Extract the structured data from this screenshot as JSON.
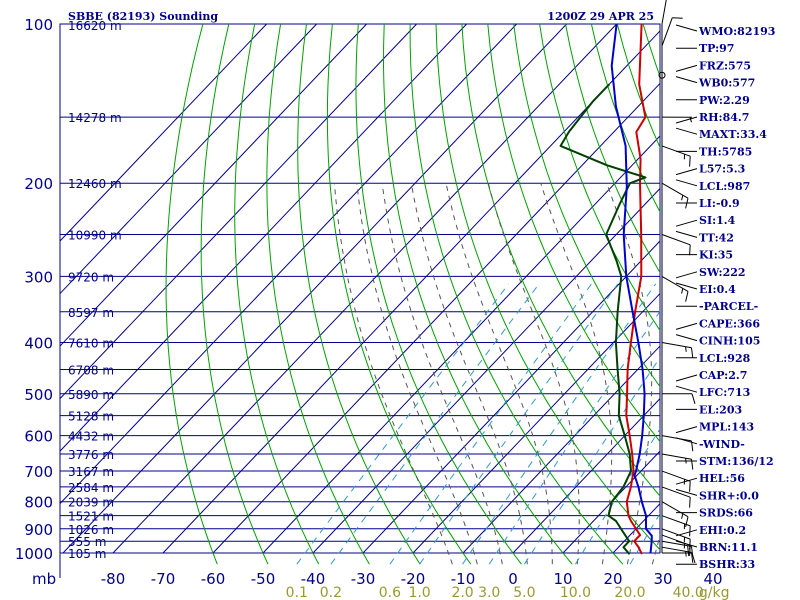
{
  "title": "SBBE (82193) Sounding",
  "timestamp": "1200Z 29 APR 25",
  "colors": {
    "frame": "#00008b",
    "isotherm": "#00008b",
    "dry_adiabat": "#00a000",
    "moist_adiabat": "#555555",
    "mixing_ratio": "#3399cc",
    "temperature": "#cc0000",
    "dewpoint": "#004000",
    "parcel": "#0000cc",
    "labels": "#00008b",
    "mixing_label": "#999933"
  },
  "chart_data": {
    "type": "line",
    "title": "SBBE (82193) Sounding",
    "xlabel": "",
    "ylabel": "mb",
    "x_ticks": [
      -80,
      -70,
      -60,
      -50,
      -40,
      -30,
      -20,
      -10,
      0,
      10,
      20,
      30,
      40
    ],
    "y_ticks": [
      100,
      200,
      300,
      400,
      500,
      600,
      700,
      800,
      900,
      1000
    ],
    "xlim": [
      -80,
      40
    ],
    "ylim": [
      1000,
      100
    ],
    "grid": true,
    "mixing_ratio_labels": [
      "0.1",
      "0.2",
      "0.6",
      "1.0",
      "2.0",
      "3.0",
      "5.0",
      "10.0",
      "20.0",
      "40.0",
      "g/kg"
    ],
    "height_labels": [
      {
        "p": 100,
        "label": "16620 m"
      },
      {
        "p": 150,
        "label": "14278 m"
      },
      {
        "p": 200,
        "label": "12460 m"
      },
      {
        "p": 250,
        "label": "10990 m"
      },
      {
        "p": 300,
        "label": "9720 m"
      },
      {
        "p": 350,
        "label": "8597 m"
      },
      {
        "p": 400,
        "label": "7610 m"
      },
      {
        "p": 450,
        "label": "6708 m"
      },
      {
        "p": 500,
        "label": "5890 m"
      },
      {
        "p": 550,
        "label": "5128 m"
      },
      {
        "p": 600,
        "label": "4432 m"
      },
      {
        "p": 650,
        "label": "3776 m"
      },
      {
        "p": 700,
        "label": "3167 m"
      },
      {
        "p": 750,
        "label": "2584 m"
      },
      {
        "p": 800,
        "label": "2039 m"
      },
      {
        "p": 850,
        "label": "1521 m"
      },
      {
        "p": 900,
        "label": "1026 m"
      },
      {
        "p": 950,
        "label": "555 m"
      },
      {
        "p": 1000,
        "label": "105 m"
      }
    ],
    "series": [
      {
        "id": "temperature",
        "points": [
          [
            1005,
            26.0
          ],
          [
            975,
            24.0
          ],
          [
            950,
            22.0
          ],
          [
            925,
            22.0
          ],
          [
            900,
            20.0
          ],
          [
            870,
            17.5
          ],
          [
            850,
            16.0
          ],
          [
            800,
            13.0
          ],
          [
            750,
            11.0
          ],
          [
            700,
            8.5
          ],
          [
            650,
            5.0
          ],
          [
            600,
            1.0
          ],
          [
            550,
            -3.5
          ],
          [
            500,
            -7.5
          ],
          [
            450,
            -12.0
          ],
          [
            400,
            -16.5
          ],
          [
            350,
            -21.5
          ],
          [
            300,
            -27.0
          ],
          [
            250,
            -35.0
          ],
          [
            200,
            -45.0
          ],
          [
            180,
            -49.5
          ],
          [
            160,
            -55.5
          ],
          [
            150,
            -56.5
          ],
          [
            130,
            -64.0
          ],
          [
            100,
            -75.0
          ]
        ]
      },
      {
        "id": "dewpoint",
        "points": [
          [
            1005,
            23.5
          ],
          [
            975,
            21.0
          ],
          [
            950,
            21.0
          ],
          [
            925,
            19.0
          ],
          [
            900,
            17.0
          ],
          [
            870,
            14.5
          ],
          [
            850,
            12.0
          ],
          [
            800,
            10.0
          ],
          [
            750,
            9.5
          ],
          [
            700,
            8.0
          ],
          [
            650,
            4.5
          ],
          [
            600,
            0.0
          ],
          [
            550,
            -5.0
          ],
          [
            500,
            -9.0
          ],
          [
            450,
            -14.0
          ],
          [
            400,
            -19.5
          ],
          [
            350,
            -25.0
          ],
          [
            300,
            -31.0
          ],
          [
            280,
            -35.0
          ],
          [
            250,
            -42.0
          ],
          [
            220,
            -45.0
          ],
          [
            200,
            -47.0
          ],
          [
            195,
            -45.0
          ],
          [
            185,
            -55.0
          ],
          [
            170,
            -68.0
          ],
          [
            160,
            -69.0
          ],
          [
            140,
            -70.0
          ],
          [
            130,
            -70.0
          ]
        ]
      },
      {
        "id": "parcel",
        "points": [
          [
            1000,
            27.5
          ],
          [
            950,
            25.5
          ],
          [
            928,
            24.5
          ],
          [
            900,
            22.0
          ],
          [
            850,
            19.5
          ],
          [
            800,
            16.0
          ],
          [
            750,
            12.5
          ],
          [
            713,
            9.5
          ],
          [
            700,
            9.0
          ],
          [
            650,
            6.5
          ],
          [
            600,
            3.5
          ],
          [
            550,
            0.0
          ],
          [
            500,
            -4.0
          ],
          [
            450,
            -9.0
          ],
          [
            400,
            -15.0
          ],
          [
            350,
            -22.0
          ],
          [
            300,
            -30.0
          ],
          [
            250,
            -38.5
          ],
          [
            203,
            -47.0
          ],
          [
            170,
            -55.0
          ],
          [
            143,
            -64.5
          ],
          [
            120,
            -73.0
          ],
          [
            100,
            -80.0
          ]
        ]
      }
    ],
    "wind_barbs": [
      {
        "p": 1000,
        "dir": 90,
        "kt": 10
      },
      {
        "p": 975,
        "dir": 100,
        "kt": 15
      },
      {
        "p": 950,
        "dir": 100,
        "kt": 20
      },
      {
        "p": 925,
        "dir": 110,
        "kt": 15
      },
      {
        "p": 900,
        "dir": 110,
        "kt": 15
      },
      {
        "p": 850,
        "dir": 110,
        "kt": 15
      },
      {
        "p": 800,
        "dir": 120,
        "kt": 15
      },
      {
        "p": 750,
        "dir": 110,
        "kt": 10
      },
      {
        "p": 700,
        "dir": 110,
        "kt": 15
      },
      {
        "p": 650,
        "dir": 100,
        "kt": 15
      },
      {
        "p": 600,
        "dir": 100,
        "kt": 10
      },
      {
        "p": 500,
        "dir": 90,
        "kt": 10
      },
      {
        "p": 400,
        "dir": 100,
        "kt": 15
      },
      {
        "p": 300,
        "dir": 120,
        "kt": 15
      },
      {
        "p": 250,
        "dir": 110,
        "kt": 10
      },
      {
        "p": 200,
        "dir": 120,
        "kt": 15
      },
      {
        "p": 170,
        "dir": 110,
        "kt": 15
      },
      {
        "p": 150,
        "dir": 90,
        "kt": 5
      },
      {
        "p": 125,
        "dir": 0,
        "kt": 0
      },
      {
        "p": 110,
        "dir": 20,
        "kt": 10
      },
      {
        "p": 100,
        "dir": 10,
        "kt": 10
      }
    ]
  },
  "indices": [
    "WMO:82193",
    "TP:97",
    "FRZ:575",
    "WB0:577",
    "PW:2.29",
    "RH:84.7",
    "MAXT:33.4",
    "TH:5785",
    "L57:5.3",
    "LCL:987",
    "LI:-0.9",
    "SI:1.4",
    "TT:42",
    "KI:35",
    "SW:222",
    "EI:0.4",
    "-PARCEL-",
    "CAPE:366",
    "CINH:105",
    "LCL:928",
    "CAP:2.7",
    "LFC:713",
    "EL:203",
    "MPL:143",
    "-WIND-",
    "STM:136/12",
    "HEL:56",
    "SHR+:0.0",
    "SRDS:66",
    "EHI:0.2",
    "BRN:11.1",
    "BSHR:33"
  ]
}
